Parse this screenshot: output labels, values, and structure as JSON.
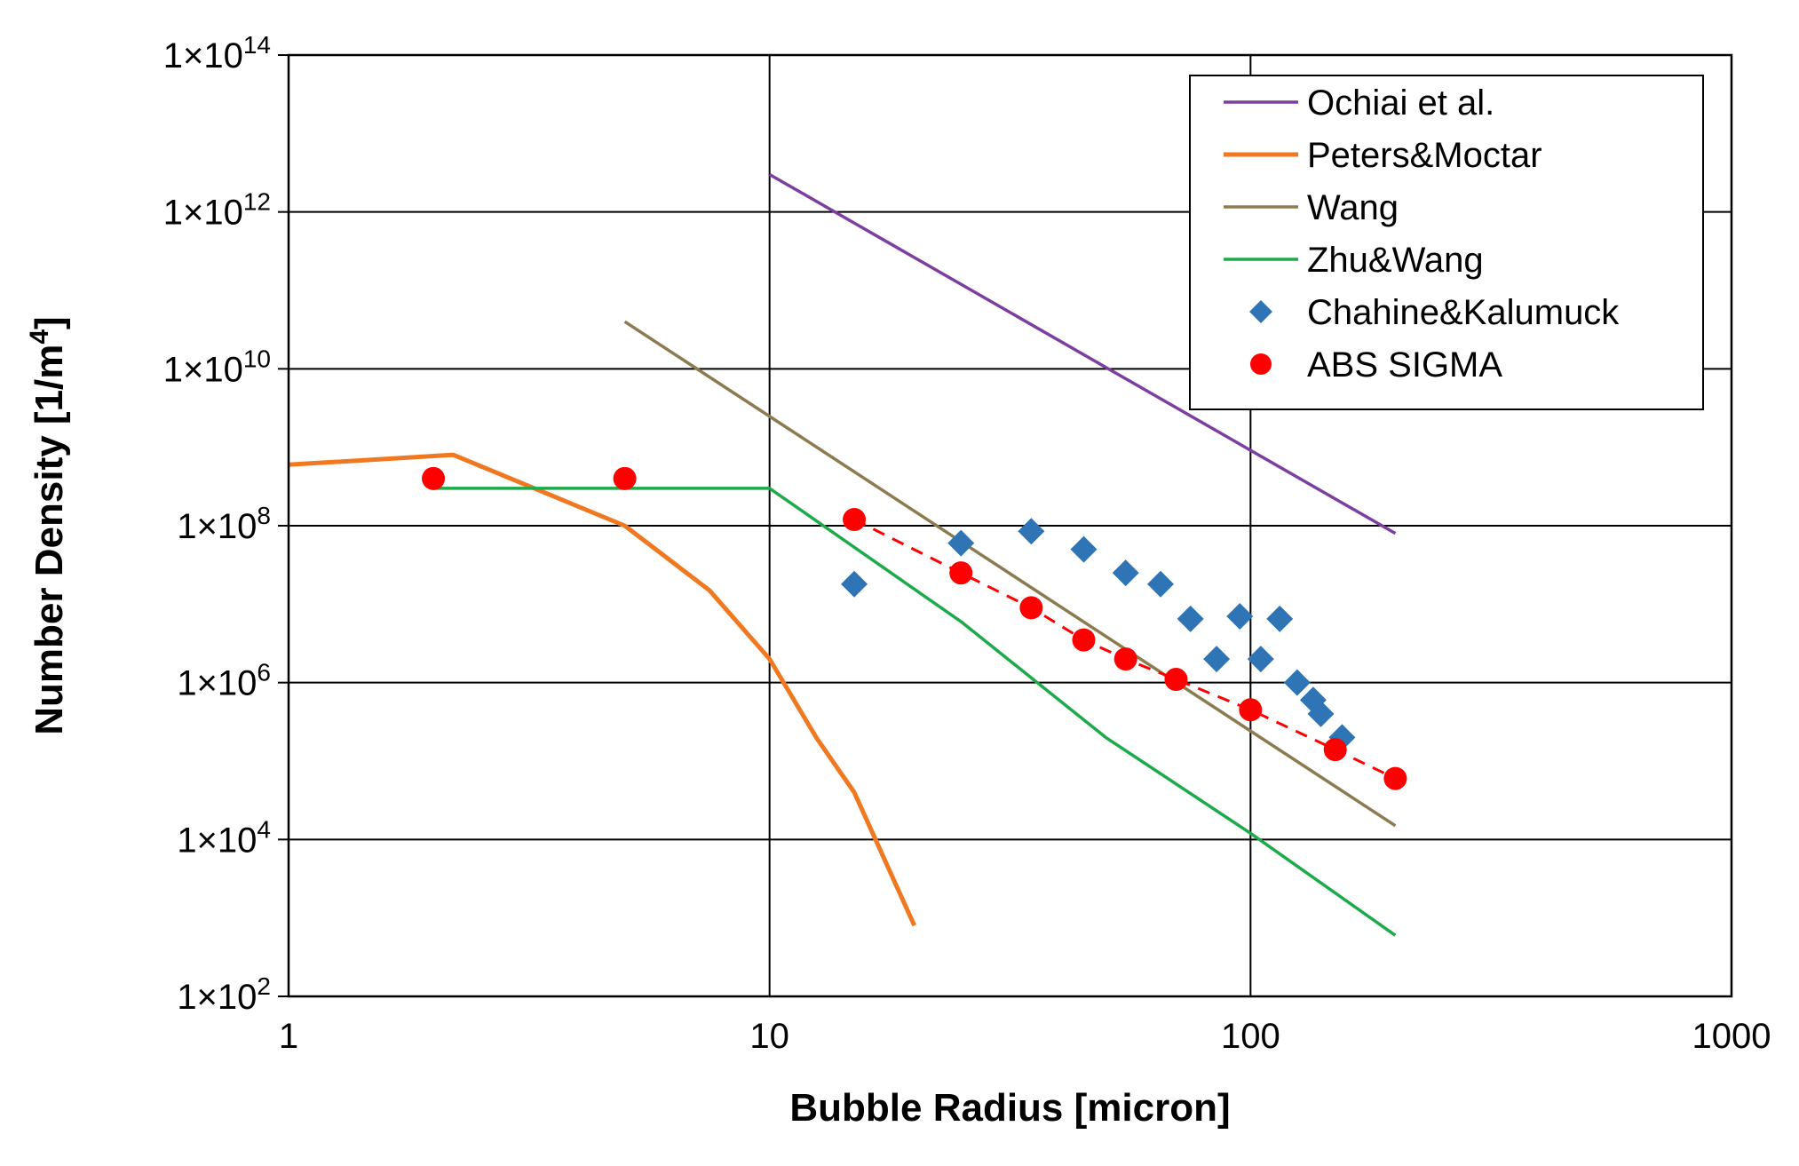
{
  "chart_data": {
    "type": "scatter",
    "xlabel": "Bubble Radius [micron]",
    "ylabel": {
      "main": "Number Density [1/m",
      "sup": "4",
      "close": "]"
    },
    "xscale": "log",
    "yscale": "log",
    "xlim": [
      1,
      1000
    ],
    "ylim": [
      100,
      100000000000000
    ],
    "grid": true,
    "legend_position": "top-right",
    "x_ticks": [
      {
        "value": 1,
        "label": "1"
      },
      {
        "value": 10,
        "label": "10"
      },
      {
        "value": 100,
        "label": "100"
      },
      {
        "value": 1000,
        "label": "1000"
      }
    ],
    "y_ticks": [
      {
        "value": 100,
        "base": "1×10",
        "exp": "2"
      },
      {
        "value": 10000,
        "base": "1×10",
        "exp": "4"
      },
      {
        "value": 1000000,
        "base": "1×10",
        "exp": "6"
      },
      {
        "value": 100000000,
        "base": "1×10",
        "exp": "8"
      },
      {
        "value": 10000000000,
        "base": "1×10",
        "exp": "10"
      },
      {
        "value": 1000000000000,
        "base": "1×10",
        "exp": "12"
      },
      {
        "value": 100000000000000,
        "base": "1×10",
        "exp": "14"
      }
    ],
    "series": [
      {
        "name": "Ochiai et al.",
        "style": "line",
        "color": "#7b3fa0",
        "points": [
          [
            10,
            3000000000000
          ],
          [
            200,
            80000000
          ]
        ]
      },
      {
        "name": "Peters&Moctar",
        "style": "line",
        "color": "#f07820",
        "points": [
          [
            1,
            600000000
          ],
          [
            2.2,
            800000000
          ],
          [
            5,
            100000000
          ],
          [
            7.5,
            15000000
          ],
          [
            10,
            2000000
          ],
          [
            12.5,
            200000
          ],
          [
            15,
            40000
          ],
          [
            20,
            800
          ]
        ]
      },
      {
        "name": "Wang",
        "style": "line",
        "color": "#8c7b50",
        "points": [
          [
            5,
            40000000000
          ],
          [
            200,
            15000
          ]
        ]
      },
      {
        "name": "Zhu&Wang",
        "style": "line",
        "color": "#1daa4a",
        "points": [
          [
            2,
            300000000
          ],
          [
            10,
            300000000
          ],
          [
            25,
            6000000
          ],
          [
            50,
            200000
          ],
          [
            100,
            12000
          ],
          [
            200,
            600
          ]
        ]
      },
      {
        "name": "Chahine&Kalumuck",
        "style": "diamond",
        "color": "#2f75b5",
        "points": [
          [
            15,
            18000000
          ],
          [
            25,
            60000000
          ],
          [
            35,
            85000000
          ],
          [
            45,
            50000000
          ],
          [
            55,
            25000000
          ],
          [
            65,
            18000000
          ],
          [
            75,
            6500000
          ],
          [
            85,
            2000000
          ],
          [
            95,
            7000000
          ],
          [
            105,
            2000000
          ],
          [
            115,
            6500000
          ],
          [
            125,
            1000000
          ],
          [
            135,
            600000
          ],
          [
            140,
            400000
          ],
          [
            155,
            200000
          ]
        ]
      },
      {
        "name": "ABS SIGMA",
        "style": "circle",
        "color": "#ff0000",
        "points": [
          [
            2,
            400000000
          ],
          [
            5,
            400000000
          ],
          [
            15,
            120000000
          ],
          [
            25,
            25000000
          ],
          [
            35,
            9000000
          ],
          [
            45,
            3500000
          ],
          [
            55,
            2000000
          ],
          [
            70,
            1100000
          ],
          [
            100,
            450000
          ],
          [
            150,
            140000
          ],
          [
            200,
            60000
          ]
        ]
      },
      {
        "style": "dashed",
        "color": "#ff0000",
        "points": [
          [
            15,
            120000000
          ],
          [
            25,
            25000000
          ],
          [
            35,
            9000000
          ],
          [
            45,
            3500000
          ],
          [
            55,
            2000000
          ],
          [
            70,
            1100000
          ],
          [
            100,
            450000
          ],
          [
            150,
            140000
          ],
          [
            200,
            60000
          ]
        ]
      }
    ]
  }
}
